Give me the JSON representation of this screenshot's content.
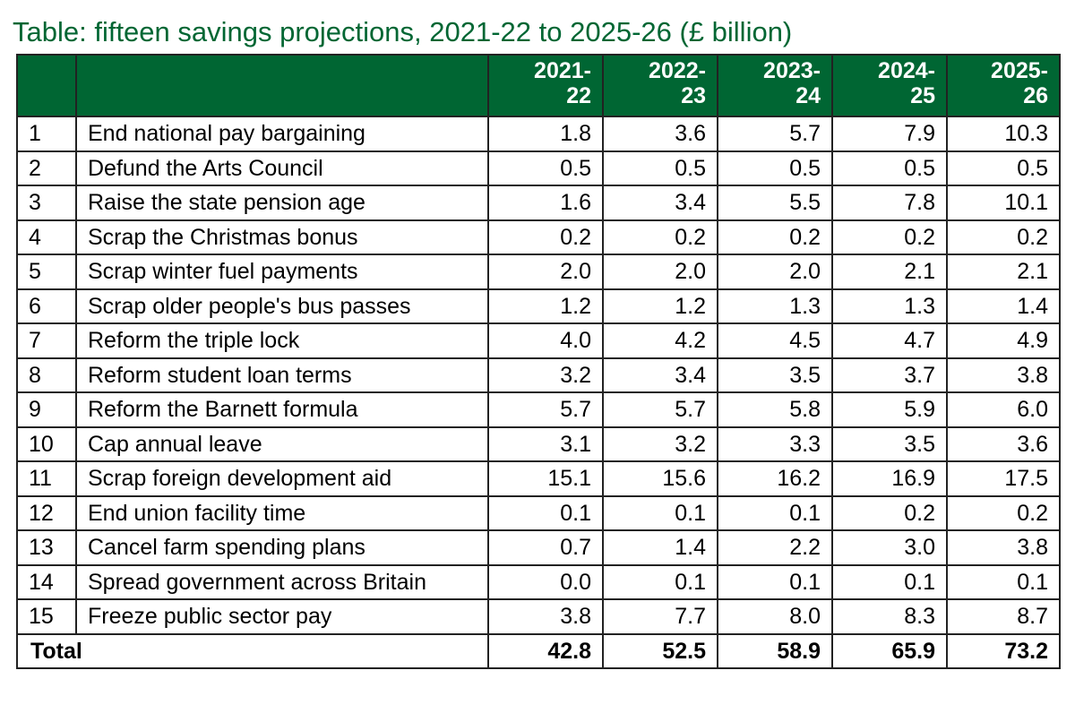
{
  "title": "Table: fifteen savings projections, 2021-22 to 2025-26 (£ billion)",
  "columns": [
    {
      "line1": "2021-",
      "line2": "22"
    },
    {
      "line1": "2022-",
      "line2": "23"
    },
    {
      "line1": "2023-",
      "line2": "24"
    },
    {
      "line1": "2024-",
      "line2": "25"
    },
    {
      "line1": "2025-",
      "line2": "26"
    }
  ],
  "rows": [
    {
      "num": "1",
      "label": "End national pay bargaining",
      "values": [
        "1.8",
        "3.6",
        "5.7",
        "7.9",
        "10.3"
      ]
    },
    {
      "num": "2",
      "label": "Defund the Arts Council",
      "values": [
        "0.5",
        "0.5",
        "0.5",
        "0.5",
        "0.5"
      ]
    },
    {
      "num": "3",
      "label": "Raise the state pension age",
      "values": [
        "1.6",
        "3.4",
        "5.5",
        "7.8",
        "10.1"
      ]
    },
    {
      "num": "4",
      "label": "Scrap the Christmas bonus",
      "values": [
        "0.2",
        "0.2",
        "0.2",
        "0.2",
        "0.2"
      ]
    },
    {
      "num": "5",
      "label": "Scrap winter fuel payments",
      "values": [
        "2.0",
        "2.0",
        "2.0",
        "2.1",
        "2.1"
      ]
    },
    {
      "num": "6",
      "label": "Scrap older people's bus passes",
      "values": [
        "1.2",
        "1.2",
        "1.3",
        "1.3",
        "1.4"
      ]
    },
    {
      "num": "7",
      "label": "Reform the triple lock",
      "values": [
        "4.0",
        "4.2",
        "4.5",
        "4.7",
        "4.9"
      ]
    },
    {
      "num": "8",
      "label": "Reform student loan terms",
      "values": [
        "3.2",
        "3.4",
        "3.5",
        "3.7",
        "3.8"
      ]
    },
    {
      "num": "9",
      "label": "Reform the Barnett formula",
      "values": [
        "5.7",
        "5.7",
        "5.8",
        "5.9",
        "6.0"
      ]
    },
    {
      "num": "10",
      "label": "Cap annual leave",
      "values": [
        "3.1",
        "3.2",
        "3.3",
        "3.5",
        "3.6"
      ]
    },
    {
      "num": "11",
      "label": "Scrap foreign development aid",
      "values": [
        "15.1",
        "15.6",
        "16.2",
        "16.9",
        "17.5"
      ]
    },
    {
      "num": "12",
      "label": "End union facility time",
      "values": [
        "0.1",
        "0.1",
        "0.1",
        "0.2",
        "0.2"
      ]
    },
    {
      "num": "13",
      "label": "Cancel farm spending plans",
      "values": [
        "0.7",
        "1.4",
        "2.2",
        "3.0",
        "3.8"
      ]
    },
    {
      "num": "14",
      "label": "Spread government across Britain",
      "values": [
        "0.0",
        "0.1",
        "0.1",
        "0.1",
        "0.1"
      ]
    },
    {
      "num": "15",
      "label": "Freeze public sector pay",
      "values": [
        "3.8",
        "7.7",
        "8.0",
        "8.3",
        "8.7"
      ]
    }
  ],
  "total": {
    "label": "Total",
    "values": [
      "42.8",
      "52.5",
      "58.9",
      "65.9",
      "73.2"
    ]
  },
  "colors": {
    "header_bg": "#006633",
    "title": "#006633",
    "border": "#222222"
  }
}
